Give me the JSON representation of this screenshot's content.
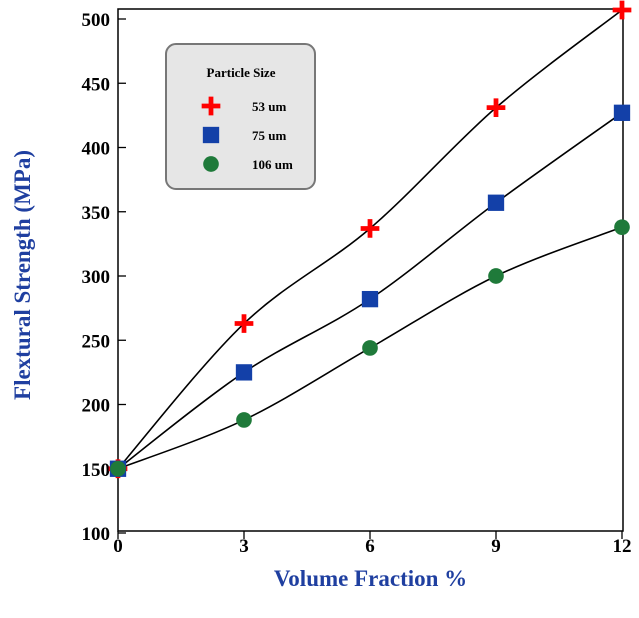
{
  "chart_data": {
    "type": "scatter",
    "title": "",
    "xlabel": "Volume Fraction %",
    "ylabel": "Flextural Strength (MPa)",
    "xlim": [
      0,
      12
    ],
    "ylim": [
      100,
      510
    ],
    "x_ticks": [
      0,
      3,
      6,
      9,
      12
    ],
    "y_ticks": [
      100,
      150,
      200,
      250,
      300,
      350,
      400,
      450,
      500
    ],
    "grid": false,
    "legend": {
      "title": "Particle Size",
      "placement": "top-left"
    },
    "series": [
      {
        "name": "53 um",
        "marker": "plus",
        "color": "#ff0000",
        "x": [
          0,
          3,
          6,
          9,
          12
        ],
        "y": [
          150,
          263,
          337,
          431,
          507
        ]
      },
      {
        "name": "75 um",
        "marker": "square",
        "color": "#1340a8",
        "x": [
          0,
          3,
          6,
          9,
          12
        ],
        "y": [
          150,
          225,
          282,
          357,
          427
        ]
      },
      {
        "name": "106 um",
        "marker": "circle",
        "color": "#1f7a3a",
        "x": [
          0,
          3,
          6,
          9,
          12
        ],
        "y": [
          150,
          188,
          244,
          300,
          338
        ]
      }
    ],
    "colors": {
      "axis_label": "#1f3fa0",
      "axis": "#000000",
      "curve": "#000000",
      "legend_bg": "#e6e6e6"
    }
  }
}
